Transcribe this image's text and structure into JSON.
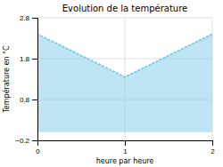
{
  "chart_data": {
    "type": "area",
    "title": "Evolution de la température",
    "xlabel": "heure par heure",
    "ylabel": "Température en °C",
    "x": [
      0,
      1,
      2
    ],
    "values": [
      2.4,
      1.35,
      2.4
    ],
    "color": "#7dcce8",
    "line_style": "dotted",
    "xlim": [
      0,
      2
    ],
    "ylim": [
      -0.2,
      2.8
    ],
    "xticks": [
      0,
      1,
      2
    ],
    "yticks": [
      {
        "value": -0.2,
        "label": "−0.2"
      },
      0.8,
      1.8,
      2.8
    ],
    "grid": true
  }
}
